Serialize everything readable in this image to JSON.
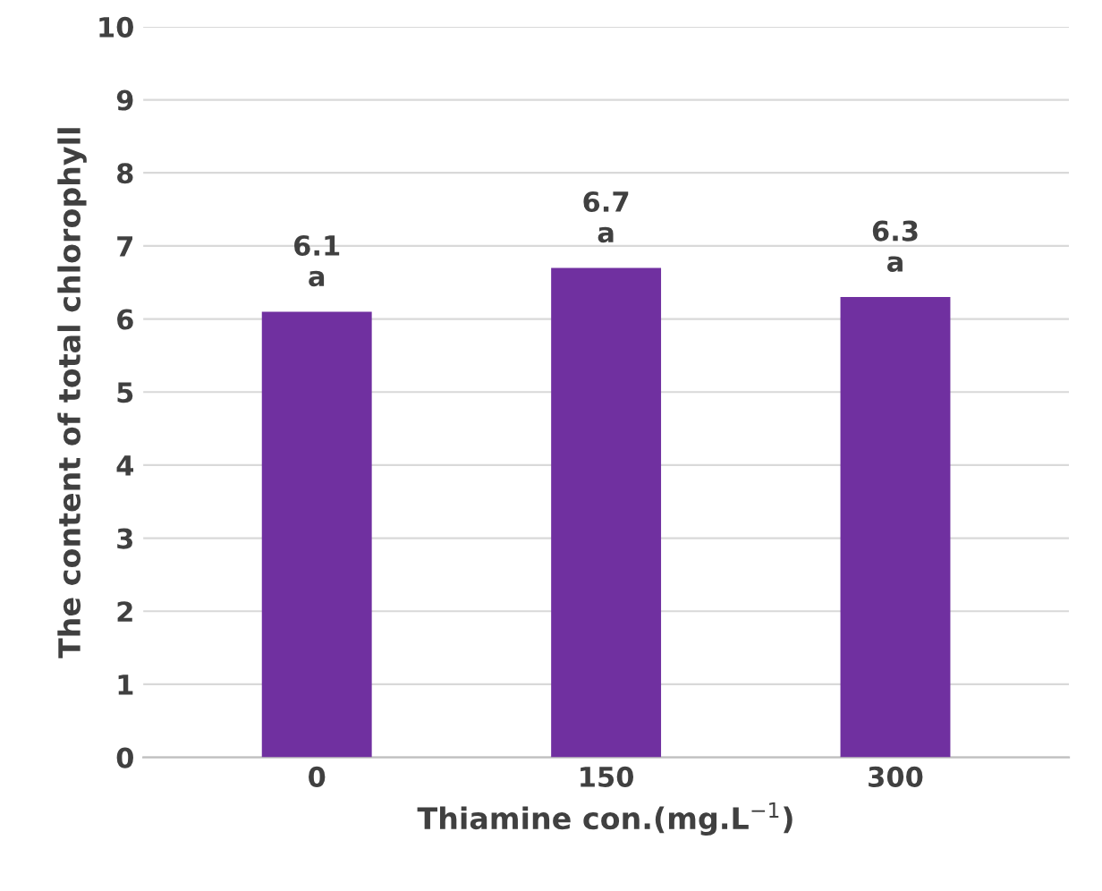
{
  "chart_data": {
    "type": "bar",
    "categories": [
      "0",
      "150",
      "300"
    ],
    "values": [
      6.1,
      6.7,
      6.3
    ],
    "color": "#7030a0",
    "value_labels": [
      "6.1\na",
      "6.7\na",
      "6.3\na"
    ],
    "xlabel": "Thiamine con.(mg.L$^{−1}$)",
    "ylabel": "The content of total chlorophyll",
    "ylim": [
      0,
      10
    ],
    "yticks": [
      0,
      1,
      2,
      3,
      4,
      5,
      6,
      7,
      8,
      9,
      10
    ],
    "grid": "y"
  }
}
